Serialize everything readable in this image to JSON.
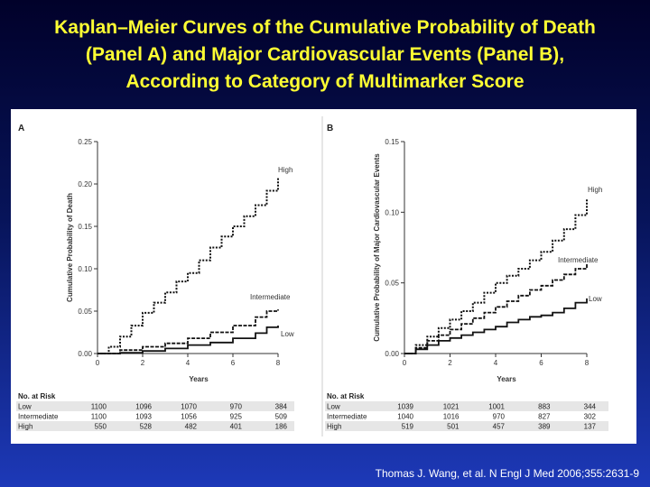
{
  "title_lines": [
    "Kaplan–Meier Curves of the Cumulative Probability of Death",
    "(Panel A) and Major Cardiovascular Events (Panel B),",
    "According to Category of Multimarker Score"
  ],
  "citation": "Thomas J. Wang, et al. N Engl J Med 2006;355:2631-9",
  "chart_data": [
    {
      "type": "line",
      "panel": "A",
      "title": "",
      "xlabel": "Years",
      "ylabel": "Cumulative Probability of Death",
      "xlim": [
        0,
        8
      ],
      "ylim": [
        0,
        0.25
      ],
      "xticks": [
        0,
        2,
        4,
        6,
        8
      ],
      "yticks": [
        "0.00",
        "0.05",
        "0.10",
        "0.15",
        "0.20",
        "0.25"
      ],
      "series": [
        {
          "name": "High",
          "style": "dotted",
          "points": [
            [
              0,
              0
            ],
            [
              0.5,
              0.008
            ],
            [
              1,
              0.02
            ],
            [
              1.5,
              0.033
            ],
            [
              2,
              0.048
            ],
            [
              2.5,
              0.06
            ],
            [
              3,
              0.072
            ],
            [
              3.5,
              0.085
            ],
            [
              4,
              0.095
            ],
            [
              4.5,
              0.11
            ],
            [
              5,
              0.125
            ],
            [
              5.5,
              0.138
            ],
            [
              6,
              0.15
            ],
            [
              6.5,
              0.162
            ],
            [
              7,
              0.175
            ],
            [
              7.5,
              0.192
            ],
            [
              8,
              0.208
            ]
          ]
        },
        {
          "name": "Intermediate",
          "style": "dashed",
          "points": [
            [
              0,
              0
            ],
            [
              1,
              0.004
            ],
            [
              2,
              0.008
            ],
            [
              3,
              0.012
            ],
            [
              4,
              0.018
            ],
            [
              5,
              0.025
            ],
            [
              6,
              0.033
            ],
            [
              7,
              0.043
            ],
            [
              7.5,
              0.05
            ],
            [
              8,
              0.052
            ]
          ]
        },
        {
          "name": "Low",
          "style": "solid",
          "points": [
            [
              0,
              0
            ],
            [
              1,
              0.001
            ],
            [
              2,
              0.003
            ],
            [
              3,
              0.006
            ],
            [
              4,
              0.01
            ],
            [
              5,
              0.013
            ],
            [
              6,
              0.018
            ],
            [
              7,
              0.024
            ],
            [
              7.5,
              0.031
            ],
            [
              8,
              0.033
            ]
          ]
        }
      ],
      "risk_table": {
        "heading": "No. at Risk",
        "rows": [
          {
            "label": "Low",
            "values": [
              "1100",
              "1096",
              "1070",
              "970",
              "384"
            ]
          },
          {
            "label": "Intermediate",
            "values": [
              "1100",
              "1093",
              "1056",
              "925",
              "509"
            ]
          },
          {
            "label": "High",
            "values": [
              "550",
              "528",
              "482",
              "401",
              "186"
            ]
          }
        ]
      }
    },
    {
      "type": "line",
      "panel": "B",
      "title": "",
      "xlabel": "Years",
      "ylabel": "Cumulative Probability of Major Cardiovascular Events",
      "xlim": [
        0,
        8
      ],
      "ylim": [
        0,
        0.15
      ],
      "xticks": [
        0,
        2,
        4,
        6,
        8
      ],
      "yticks": [
        "0.00",
        "0.05",
        "0.10",
        "0.15"
      ],
      "series": [
        {
          "name": "High",
          "style": "dotted",
          "points": [
            [
              0,
              0
            ],
            [
              0.5,
              0.006
            ],
            [
              1,
              0.012
            ],
            [
              1.5,
              0.018
            ],
            [
              2,
              0.024
            ],
            [
              2.5,
              0.03
            ],
            [
              3,
              0.036
            ],
            [
              3.5,
              0.043
            ],
            [
              4,
              0.05
            ],
            [
              4.5,
              0.055
            ],
            [
              5,
              0.06
            ],
            [
              5.5,
              0.066
            ],
            [
              6,
              0.072
            ],
            [
              6.5,
              0.08
            ],
            [
              7,
              0.088
            ],
            [
              7.5,
              0.098
            ],
            [
              8,
              0.11
            ]
          ]
        },
        {
          "name": "Intermediate",
          "style": "dashed",
          "points": [
            [
              0,
              0
            ],
            [
              0.5,
              0.004
            ],
            [
              1,
              0.009
            ],
            [
              1.5,
              0.013
            ],
            [
              2,
              0.017
            ],
            [
              2.5,
              0.021
            ],
            [
              3,
              0.025
            ],
            [
              3.5,
              0.029
            ],
            [
              4,
              0.033
            ],
            [
              4.5,
              0.037
            ],
            [
              5,
              0.041
            ],
            [
              5.5,
              0.045
            ],
            [
              6,
              0.048
            ],
            [
              6.5,
              0.052
            ],
            [
              7,
              0.056
            ],
            [
              7.5,
              0.06
            ],
            [
              8,
              0.064
            ]
          ]
        },
        {
          "name": "Low",
          "style": "solid",
          "points": [
            [
              0,
              0
            ],
            [
              0.5,
              0.003
            ],
            [
              1,
              0.006
            ],
            [
              1.5,
              0.009
            ],
            [
              2,
              0.011
            ],
            [
              2.5,
              0.013
            ],
            [
              3,
              0.015
            ],
            [
              3.5,
              0.017
            ],
            [
              4,
              0.019
            ],
            [
              4.5,
              0.022
            ],
            [
              5,
              0.024
            ],
            [
              5.5,
              0.026
            ],
            [
              6,
              0.027
            ],
            [
              6.5,
              0.029
            ],
            [
              7,
              0.032
            ],
            [
              7.5,
              0.036
            ],
            [
              8,
              0.039
            ]
          ]
        }
      ],
      "risk_table": {
        "heading": "No. at Risk",
        "rows": [
          {
            "label": "Low",
            "values": [
              "1039",
              "1021",
              "1001",
              "883",
              "344"
            ]
          },
          {
            "label": "Intermediate",
            "values": [
              "1040",
              "1016",
              "970",
              "827",
              "302"
            ]
          },
          {
            "label": "High",
            "values": [
              "519",
              "501",
              "457",
              "389",
              "137"
            ]
          }
        ]
      }
    }
  ]
}
